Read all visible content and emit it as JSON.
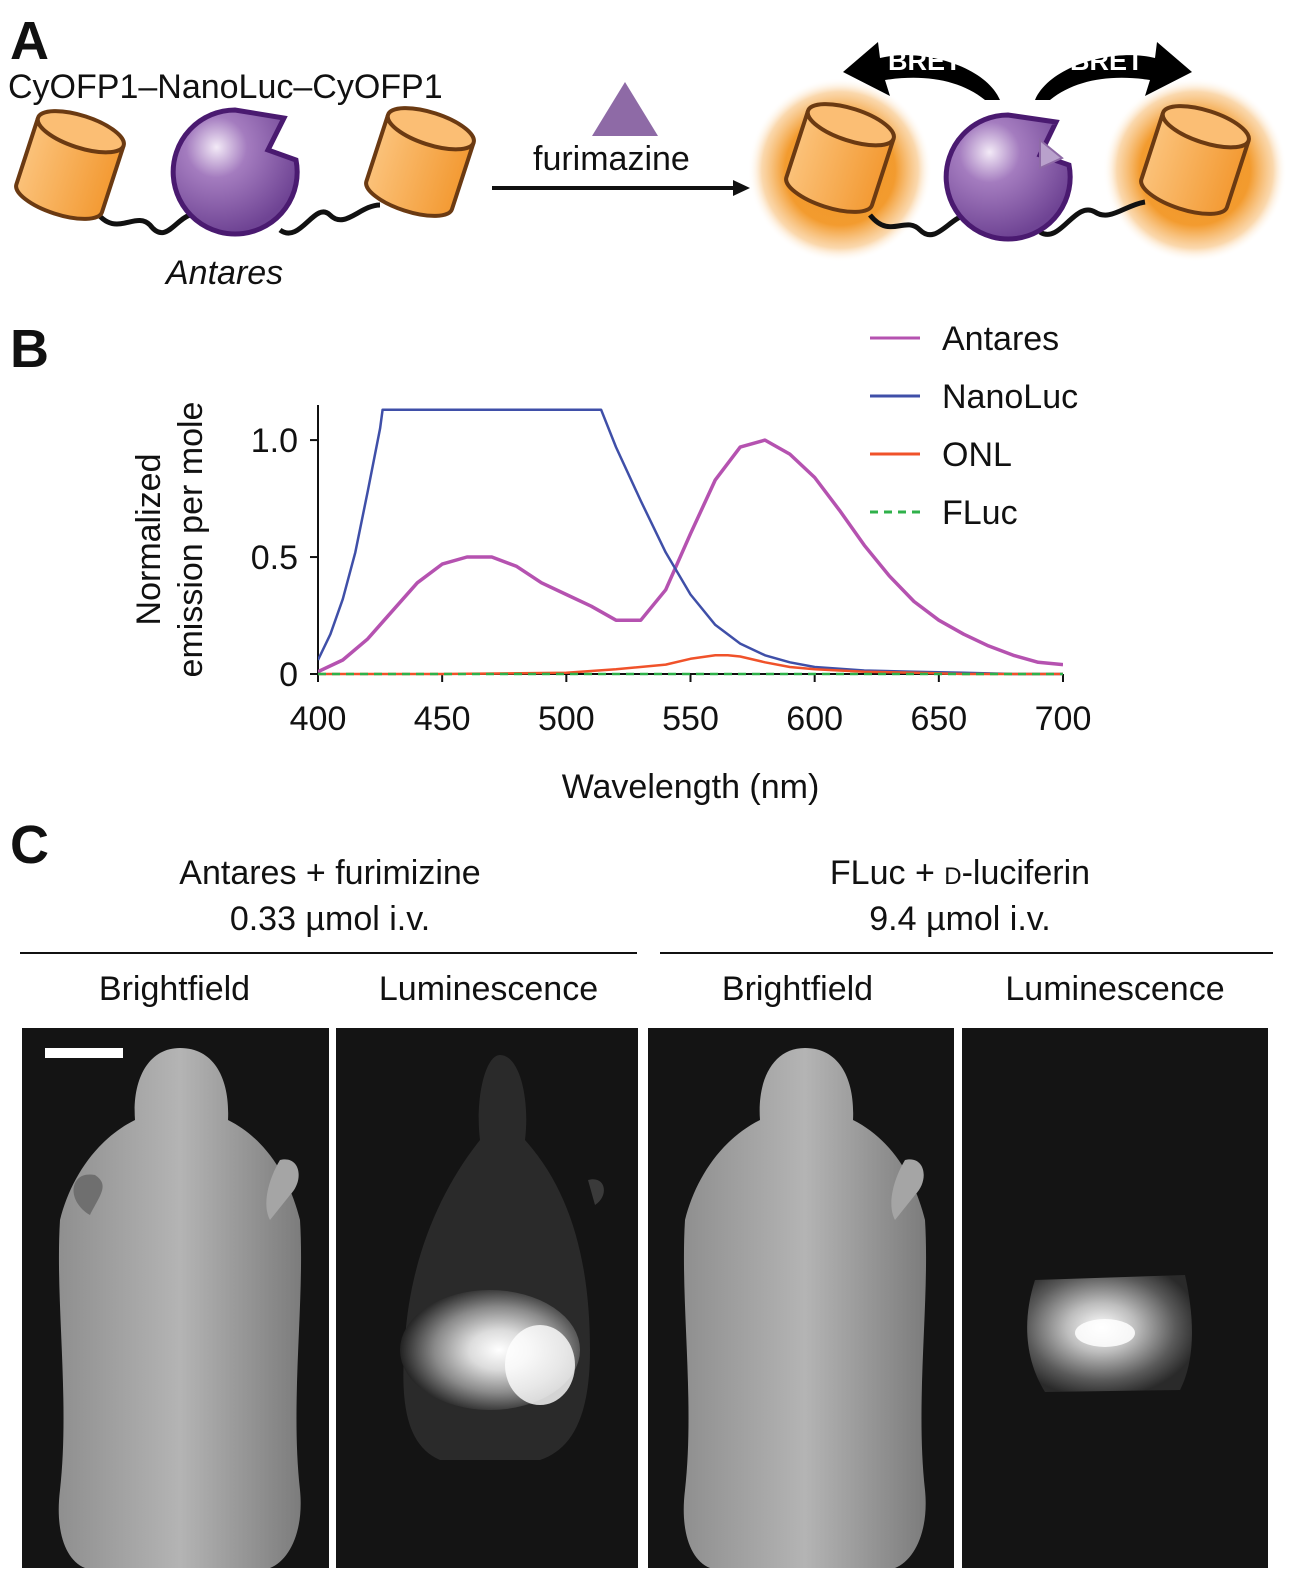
{
  "panel_a": {
    "letter": "A",
    "construct_label": "CyOFP1–NanoLuc–CyOFP1",
    "protein_name": "Antares",
    "substrate_label": "furimazine",
    "bret_label_left": "BRET",
    "bret_label_right": "BRET",
    "colors": {
      "cyofp1_fill": "#f7a94a",
      "cyofp1_stroke": "#6b3a12",
      "nanoluc_fill": "#8a5fa6",
      "nanoluc_stroke": "#4a1a70",
      "substrate": "#8e6aa6",
      "glow": "#f29624"
    }
  },
  "panel_b": {
    "letter": "B"
  },
  "chart_data": {
    "type": "line",
    "xlabel": "Wavelength (nm)",
    "ylabel": "Normalized emission per mole",
    "xlim": [
      400,
      700
    ],
    "ylim": [
      0,
      1.15
    ],
    "xticks": [
      "400",
      "450",
      "500",
      "550",
      "600",
      "650",
      "700"
    ],
    "yticks": [
      "0",
      "0.5",
      "1.0"
    ],
    "grid": false,
    "legend_position": "top-right",
    "series": [
      {
        "name": "Antares",
        "color": "#b552b0",
        "style": "solid",
        "x": [
          400,
          410,
          420,
          430,
          440,
          450,
          460,
          470,
          480,
          490,
          500,
          510,
          520,
          530,
          540,
          550,
          560,
          570,
          580,
          590,
          600,
          610,
          620,
          630,
          640,
          650,
          660,
          670,
          680,
          690,
          700
        ],
        "y": [
          0.01,
          0.06,
          0.15,
          0.27,
          0.39,
          0.47,
          0.5,
          0.5,
          0.46,
          0.39,
          0.34,
          0.29,
          0.23,
          0.23,
          0.36,
          0.6,
          0.83,
          0.97,
          1.0,
          0.94,
          0.84,
          0.7,
          0.55,
          0.42,
          0.31,
          0.23,
          0.17,
          0.12,
          0.08,
          0.05,
          0.04
        ]
      },
      {
        "name": "NanoLuc",
        "color": "#3f4fa8",
        "style": "solid",
        "x": [
          400,
          405,
          410,
          415,
          420,
          425,
          426,
          514,
          520,
          530,
          540,
          550,
          560,
          570,
          580,
          590,
          600,
          620,
          640,
          660,
          680,
          700
        ],
        "y": [
          0.06,
          0.17,
          0.32,
          0.52,
          0.78,
          1.05,
          1.13,
          1.13,
          0.97,
          0.74,
          0.52,
          0.34,
          0.21,
          0.13,
          0.08,
          0.05,
          0.03,
          0.015,
          0.01,
          0.005,
          0.0,
          0.0
        ]
      },
      {
        "name": "ONL",
        "color": "#f0522a",
        "style": "solid",
        "x": [
          400,
          450,
          500,
          520,
          540,
          550,
          560,
          565,
          570,
          580,
          590,
          600,
          620,
          640,
          660,
          700
        ],
        "y": [
          0.0,
          0.0,
          0.005,
          0.02,
          0.04,
          0.065,
          0.08,
          0.08,
          0.075,
          0.05,
          0.03,
          0.02,
          0.01,
          0.005,
          0.0,
          0.0
        ]
      },
      {
        "name": "FLuc",
        "color": "#2fb14a",
        "style": "dashed",
        "x": [
          400,
          700
        ],
        "y": [
          0.0,
          0.0
        ]
      }
    ]
  },
  "panel_c": {
    "letter": "C",
    "group_left_title": "Antares + furimizine",
    "group_left_dose": "0.33 µmol i.v.",
    "group_right_title_prefix": "FLuc + ",
    "group_right_title_d": "d",
    "group_right_title_suffix": "-luciferin",
    "group_right_dose": "9.4 µmol i.v.",
    "columns": [
      "Brightfield",
      "Luminescence",
      "Brightfield",
      "Luminescence"
    ]
  }
}
